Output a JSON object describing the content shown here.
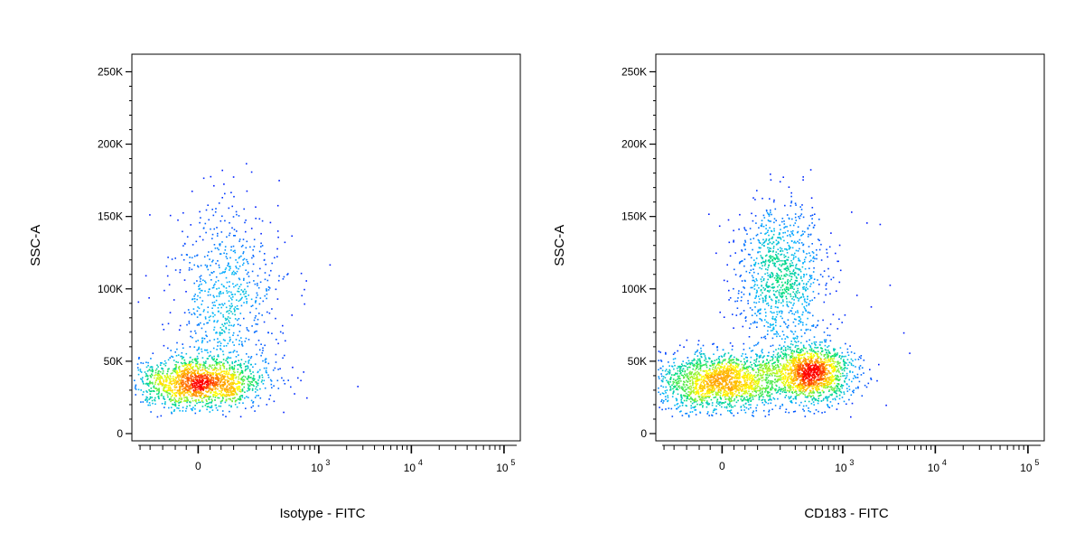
{
  "chart_data": [
    {
      "type": "scatter",
      "subtype": "flow-cytometry-density-dot-plot",
      "title": "",
      "xlabel": "Isotype - FITC",
      "ylabel": "SSC-A",
      "x_scale": "biexponential",
      "xlim": [
        -250,
        150000
      ],
      "ylim": [
        -5000,
        262144
      ],
      "y_ticks": [
        {
          "value": 0,
          "label": "0"
        },
        {
          "value": 50000,
          "label": "50K"
        },
        {
          "value": 100000,
          "label": "100K"
        },
        {
          "value": 150000,
          "label": "150K"
        },
        {
          "value": 200000,
          "label": "200K"
        },
        {
          "value": 250000,
          "label": "250K"
        }
      ],
      "x_ticks": [
        {
          "value": 0,
          "label": "0"
        },
        {
          "value": 1000,
          "base": "10",
          "exp": "3"
        },
        {
          "value": 10000,
          "base": "10",
          "exp": "4"
        },
        {
          "value": 100000,
          "base": "10",
          "exp": "5"
        }
      ],
      "populations": [
        {
          "name": "main",
          "n": 1700,
          "x_center": 0,
          "x_spread": 90,
          "y_center": 36000,
          "y_spread": 9000
        },
        {
          "name": "high-ssc",
          "n": 700,
          "x_center": 80,
          "x_spread": 110,
          "y_center": 95000,
          "y_spread": 30000
        }
      ],
      "outliers": [
        {
          "x": 150,
          "y": 168000
        },
        {
          "x": 30,
          "y": 178000
        },
        {
          "x": 350,
          "y": 158000
        },
        {
          "x": 500,
          "y": 137000
        },
        {
          "x": 720,
          "y": 106000
        },
        {
          "x": 1300,
          "y": 117000
        },
        {
          "x": 2600,
          "y": 33000
        },
        {
          "x": -40,
          "y": 153000
        },
        {
          "x": 320,
          "y": 122000
        }
      ],
      "grid": false,
      "legend": "none",
      "colormap": [
        "#0000ff",
        "#00b4ff",
        "#00e070",
        "#ffff00",
        "#ff9900",
        "#ff0000"
      ]
    },
    {
      "type": "scatter",
      "subtype": "flow-cytometry-density-dot-plot",
      "title": "",
      "xlabel": "CD183 - FITC",
      "ylabel": "SSC-A",
      "x_scale": "biexponential",
      "xlim": [
        -250,
        150000
      ],
      "ylim": [
        -5000,
        262144
      ],
      "y_ticks": [
        {
          "value": 0,
          "label": "0"
        },
        {
          "value": 50000,
          "label": "50K"
        },
        {
          "value": 100000,
          "label": "100K"
        },
        {
          "value": 150000,
          "label": "150K"
        },
        {
          "value": 200000,
          "label": "200K"
        },
        {
          "value": 250000,
          "label": "250K"
        }
      ],
      "x_ticks": [
        {
          "value": 0,
          "label": "0"
        },
        {
          "value": 1000,
          "base": "10",
          "exp": "3"
        },
        {
          "value": 10000,
          "base": "10",
          "exp": "4"
        },
        {
          "value": 100000,
          "base": "10",
          "exp": "5"
        }
      ],
      "populations": [
        {
          "name": "negative",
          "n": 1900,
          "x_center": 0,
          "x_spread": 90,
          "y_center": 37000,
          "y_spread": 10000
        },
        {
          "name": "cd183-positive",
          "n": 1500,
          "x_center": 450,
          "x_spread": 300,
          "y_center": 42000,
          "y_spread": 10000
        },
        {
          "name": "high-ssc",
          "n": 1000,
          "x_center": 200,
          "x_spread": 160,
          "y_center": 110000,
          "y_spread": 25000
        }
      ],
      "outliers": [
        {
          "x": 2500,
          "y": 145000
        },
        {
          "x": 1800,
          "y": 146000
        },
        {
          "x": 3200,
          "y": 103000
        },
        {
          "x": 4500,
          "y": 70000
        },
        {
          "x": 5200,
          "y": 56000
        },
        {
          "x": 1200,
          "y": 12000
        },
        {
          "x": 2900,
          "y": 20000
        },
        {
          "x": -150,
          "y": 20000
        },
        {
          "x": 2000,
          "y": 88000
        },
        {
          "x": 1400,
          "y": 96000
        }
      ],
      "grid": false,
      "legend": "none",
      "colormap": [
        "#0000ff",
        "#00b4ff",
        "#00e070",
        "#ffff00",
        "#ff9900",
        "#ff0000"
      ]
    }
  ]
}
